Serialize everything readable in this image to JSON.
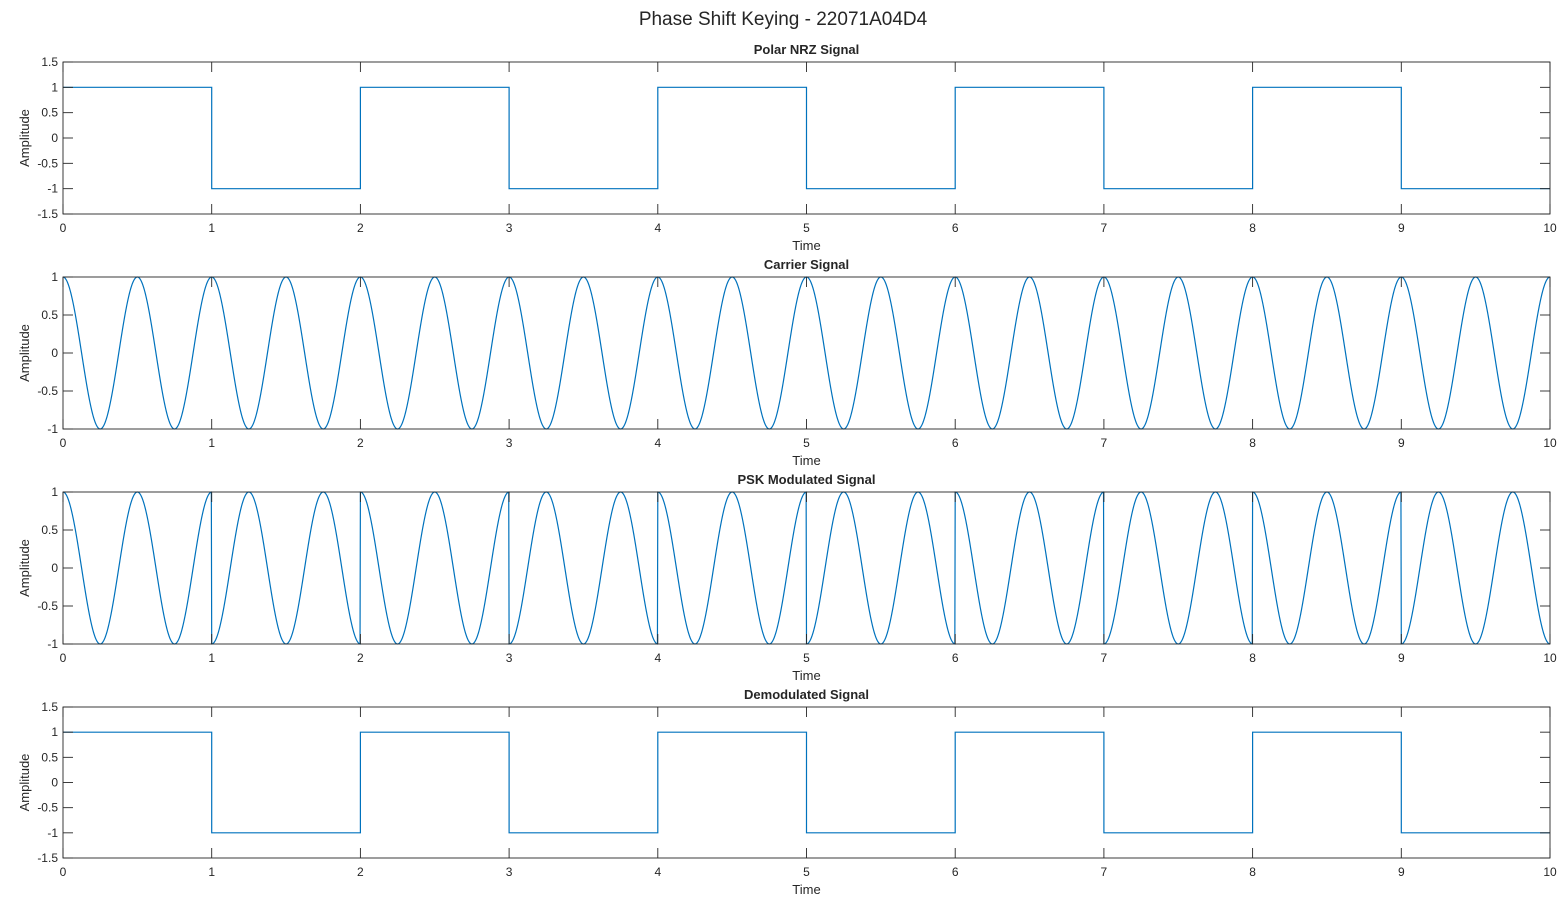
{
  "figure": {
    "title": "Phase Shift Keying - 22071A04D4",
    "line_color": "#0072BD",
    "axis_color": "#262626",
    "background": "#ffffff"
  },
  "chart_data": [
    {
      "type": "line",
      "title": "Polar NRZ Signal",
      "xlabel": "Time",
      "ylabel": "Amplitude",
      "xlim": [
        0,
        10
      ],
      "ylim": [
        -1.5,
        1.5
      ],
      "xticks": [
        "0",
        "1",
        "2",
        "3",
        "4",
        "5",
        "6",
        "7",
        "8",
        "9",
        "10"
      ],
      "yticks": [
        "1.5",
        "1",
        "0.5",
        "0",
        "-0.5",
        "-1",
        "-1.5"
      ],
      "grid": false,
      "signal": "polar_nrz",
      "bits": [
        1,
        0,
        1,
        0,
        1,
        0,
        1,
        0,
        1,
        0
      ]
    },
    {
      "type": "line",
      "title": "Carrier Signal",
      "xlabel": "Time",
      "ylabel": "Amplitude",
      "xlim": [
        0,
        10
      ],
      "ylim": [
        -1,
        1
      ],
      "xticks": [
        "0",
        "1",
        "2",
        "3",
        "4",
        "5",
        "6",
        "7",
        "8",
        "9",
        "10"
      ],
      "yticks": [
        "1",
        "0.5",
        "0",
        "-0.5",
        "-1"
      ],
      "grid": false,
      "signal": "carrier",
      "frequency_hz": 2
    },
    {
      "type": "line",
      "title": "PSK Modulated Signal",
      "xlabel": "Time",
      "ylabel": "Amplitude",
      "xlim": [
        0,
        10
      ],
      "ylim": [
        -1,
        1
      ],
      "xticks": [
        "0",
        "1",
        "2",
        "3",
        "4",
        "5",
        "6",
        "7",
        "8",
        "9",
        "10"
      ],
      "yticks": [
        "1",
        "0.5",
        "0",
        "-0.5",
        "-1"
      ],
      "grid": false,
      "signal": "psk",
      "frequency_hz": 2,
      "bits": [
        1,
        0,
        1,
        0,
        1,
        0,
        1,
        0,
        1,
        0
      ]
    },
    {
      "type": "line",
      "title": "Demodulated Signal",
      "xlabel": "Time",
      "ylabel": "Amplitude",
      "xlim": [
        0,
        10
      ],
      "ylim": [
        -1.5,
        1.5
      ],
      "xticks": [
        "0",
        "1",
        "2",
        "3",
        "4",
        "5",
        "6",
        "7",
        "8",
        "9",
        "10"
      ],
      "yticks": [
        "1.5",
        "1",
        "0.5",
        "0",
        "-0.5",
        "-1",
        "-1.5"
      ],
      "grid": false,
      "signal": "polar_nrz",
      "bits": [
        1,
        0,
        1,
        0,
        1,
        0,
        1,
        0,
        1,
        0
      ]
    }
  ]
}
